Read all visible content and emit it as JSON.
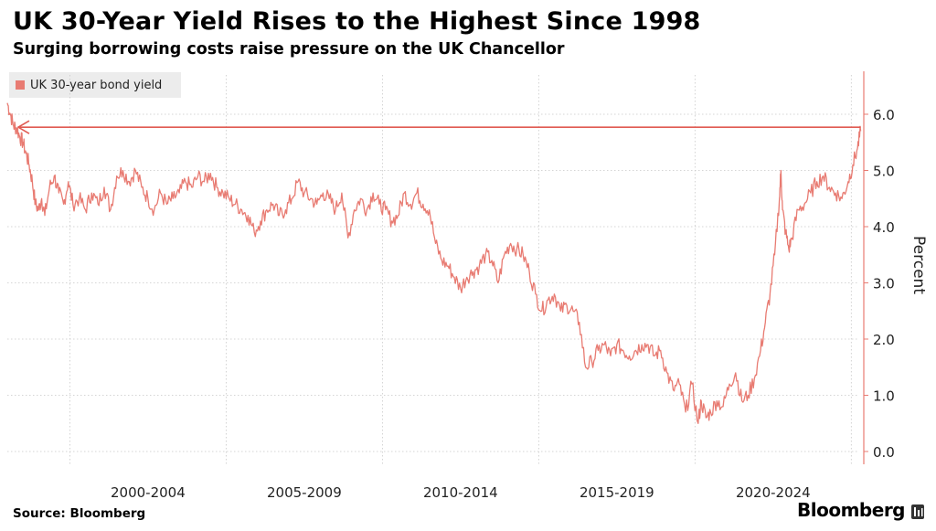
{
  "title": "UK 30-Year Yield Rises to the Highest Since 1998",
  "subtitle": "Surging borrowing costs raise pressure on the UK Chancellor",
  "source": "Source: Bloomberg",
  "brand": "Bloomberg",
  "colors": {
    "series": "#e87b72",
    "grid": "#c8c8c8",
    "axis": "#e87b72"
  },
  "chart_data": {
    "type": "line",
    "title": "UK 30-Year Yield Rises to the Highest Since 1998",
    "subtitle": "Surging borrowing costs raise pressure on the UK Chancellor",
    "ylabel": "Percent",
    "ylim": [
      0,
      6.9
    ],
    "yticks": [
      "0.0",
      "1.0",
      "2.0",
      "3.0",
      "4.0",
      "5.0",
      "6.0"
    ],
    "xlim": [
      1998.0,
      2025.4
    ],
    "x_categories": [
      {
        "label": "2000-2004",
        "start": 2000,
        "end": 2004
      },
      {
        "label": "2005-2009",
        "start": 2005,
        "end": 2009
      },
      {
        "label": "2010-2014",
        "start": 2010,
        "end": 2014
      },
      {
        "label": "2015-2019",
        "start": 2015,
        "end": 2019
      },
      {
        "label": "2020-2024",
        "start": 2020,
        "end": 2024
      }
    ],
    "legend": {
      "position": "top-left",
      "entries": [
        "UK 30-year bond yield"
      ]
    },
    "grid": true,
    "reference_line": {
      "y": 5.77,
      "from_x": 2025.3,
      "to_x": 1998.35,
      "arrow": "left"
    },
    "series": [
      {
        "name": "UK 30-year bond yield",
        "x": [
          1998.0,
          1998.1,
          1998.2,
          1998.3,
          1998.4,
          1998.5,
          1998.6,
          1998.7,
          1998.8,
          1998.9,
          1999.0,
          1999.1,
          1999.2,
          1999.35,
          1999.5,
          1999.65,
          1999.8,
          1999.95,
          2000.1,
          2000.3,
          2000.5,
          2000.7,
          2000.9,
          2001.1,
          2001.3,
          2001.5,
          2001.7,
          2001.9,
          2002.1,
          2002.3,
          2002.5,
          2002.7,
          2002.9,
          2003.1,
          2003.3,
          2003.5,
          2003.7,
          2003.9,
          2004.1,
          2004.3,
          2004.5,
          2004.7,
          2004.9,
          2005.1,
          2005.3,
          2005.5,
          2005.7,
          2005.9,
          2006.1,
          2006.3,
          2006.5,
          2006.7,
          2006.9,
          2007.1,
          2007.3,
          2007.5,
          2007.7,
          2007.9,
          2008.1,
          2008.3,
          2008.5,
          2008.7,
          2008.9,
          2009.1,
          2009.3,
          2009.5,
          2009.7,
          2009.9,
          2010.1,
          2010.3,
          2010.5,
          2010.7,
          2010.9,
          2011.1,
          2011.3,
          2011.5,
          2011.7,
          2011.9,
          2012.1,
          2012.3,
          2012.5,
          2012.7,
          2012.9,
          2013.1,
          2013.3,
          2013.5,
          2013.7,
          2013.9,
          2014.1,
          2014.3,
          2014.5,
          2014.7,
          2014.9,
          2015.1,
          2015.3,
          2015.5,
          2015.7,
          2015.9,
          2016.1,
          2016.3,
          2016.5,
          2016.7,
          2016.9,
          2017.1,
          2017.3,
          2017.5,
          2017.7,
          2017.9,
          2018.1,
          2018.3,
          2018.5,
          2018.7,
          2018.9,
          2019.1,
          2019.3,
          2019.5,
          2019.7,
          2019.9,
          2020.1,
          2020.2,
          2020.35,
          2020.5,
          2020.7,
          2020.9,
          2021.1,
          2021.3,
          2021.5,
          2021.7,
          2021.9,
          2022.1,
          2022.25,
          2022.4,
          2022.55,
          2022.7,
          2022.75,
          2022.8,
          2022.9,
          2023.0,
          2023.1,
          2023.3,
          2023.5,
          2023.7,
          2023.9,
          2024.1,
          2024.3,
          2024.5,
          2024.7,
          2024.9,
          2025.05,
          2025.2,
          2025.3
        ],
        "y": [
          6.2,
          6.0,
          5.8,
          5.75,
          5.6,
          5.5,
          5.3,
          5.1,
          4.8,
          4.4,
          4.3,
          4.5,
          4.2,
          4.7,
          4.9,
          4.6,
          4.4,
          4.8,
          4.4,
          4.5,
          4.3,
          4.6,
          4.4,
          4.7,
          4.3,
          4.9,
          5.0,
          4.8,
          5.0,
          4.7,
          4.5,
          4.3,
          4.6,
          4.4,
          4.5,
          4.6,
          4.8,
          4.7,
          4.9,
          4.8,
          4.95,
          4.7,
          4.6,
          4.5,
          4.4,
          4.3,
          4.2,
          3.9,
          4.1,
          4.3,
          4.4,
          4.2,
          4.3,
          4.5,
          4.8,
          4.6,
          4.5,
          4.4,
          4.6,
          4.5,
          4.3,
          4.6,
          3.8,
          4.3,
          4.5,
          4.3,
          4.6,
          4.4,
          4.3,
          4.1,
          4.2,
          4.6,
          4.4,
          4.6,
          4.4,
          4.3,
          3.7,
          3.4,
          3.3,
          3.1,
          2.9,
          3.1,
          3.2,
          3.3,
          3.5,
          3.4,
          3.0,
          3.5,
          3.7,
          3.6,
          3.5,
          3.2,
          2.8,
          2.5,
          2.7,
          2.8,
          2.5,
          2.6,
          2.5,
          2.3,
          1.5,
          1.6,
          1.8,
          1.9,
          1.7,
          1.9,
          1.8,
          1.7,
          1.8,
          1.9,
          1.9,
          1.7,
          1.8,
          1.4,
          1.1,
          1.2,
          0.7,
          1.2,
          0.5,
          0.9,
          0.6,
          0.7,
          0.9,
          0.8,
          1.2,
          1.4,
          0.9,
          1.0,
          1.3,
          1.8,
          2.3,
          2.8,
          3.5,
          4.5,
          5.0,
          4.3,
          3.9,
          3.6,
          3.8,
          4.3,
          4.4,
          4.6,
          4.8,
          4.9,
          4.7,
          4.6,
          4.5,
          4.8,
          5.1,
          5.4,
          5.7
        ]
      }
    ]
  }
}
